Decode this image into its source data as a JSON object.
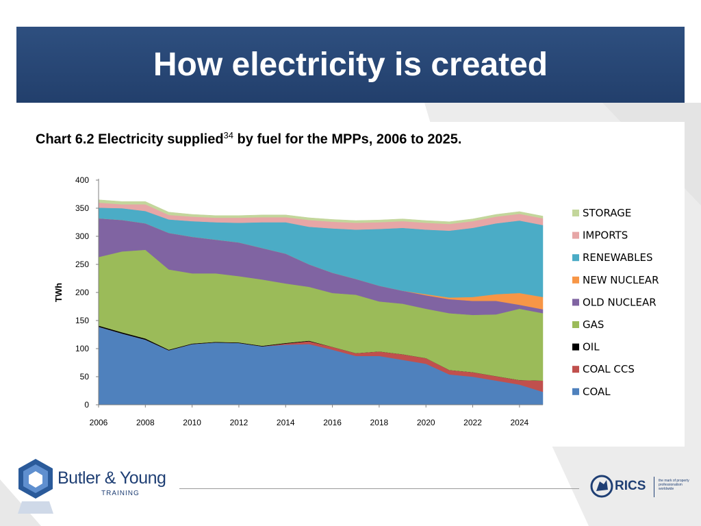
{
  "slide": {
    "title": "How electricity is created"
  },
  "chart_title": {
    "main": "Chart 6.2 Electricity supplied",
    "footnote": "34",
    "rest": " by fuel for the MPPs, 2006 to 2025."
  },
  "footer": {
    "brand": "Butler & Young",
    "brand_sub": "TRAINING",
    "partner": "RICS",
    "partner_tagline": "the mark of property professionalism worldwide"
  },
  "colors": {
    "title_bar": "#2a4876",
    "brand": "#1f3f74"
  },
  "chart_data": {
    "type": "area",
    "stacked": true,
    "title": "Chart 6.2 Electricity supplied by fuel for the MPPs, 2006 to 2025.",
    "xlabel": "",
    "ylabel": "TWh",
    "x": [
      2006,
      2007,
      2008,
      2009,
      2010,
      2011,
      2012,
      2013,
      2014,
      2015,
      2016,
      2017,
      2018,
      2019,
      2020,
      2021,
      2022,
      2023,
      2024,
      2025
    ],
    "xticks": [
      2006,
      2008,
      2010,
      2012,
      2014,
      2016,
      2018,
      2020,
      2022,
      2024
    ],
    "yticks": [
      0,
      50,
      100,
      150,
      200,
      250,
      300,
      350,
      400
    ],
    "ylim": [
      0,
      400
    ],
    "grid": false,
    "legend_position": "right",
    "series": [
      {
        "name": "COAL",
        "color": "#4f81bd",
        "values": [
          139,
          127,
          116,
          97,
          108,
          111,
          110,
          104,
          107,
          108,
          98,
          87,
          87,
          80,
          73,
          54,
          50,
          43,
          36,
          23
        ]
      },
      {
        "name": "COAL CCS",
        "color": "#c0504d",
        "values": [
          0,
          0,
          0,
          0,
          0,
          0,
          0,
          0,
          2,
          5,
          5,
          5,
          8,
          10,
          10,
          8,
          8,
          8,
          8,
          20
        ]
      },
      {
        "name": "OIL",
        "color": "#000000",
        "values": [
          2,
          2,
          2,
          1,
          1,
          1,
          1,
          1,
          1,
          1,
          0,
          0,
          0,
          0,
          0,
          0,
          0,
          0,
          0,
          0
        ]
      },
      {
        "name": "GAS",
        "color": "#9bbb59",
        "values": [
          122,
          144,
          158,
          143,
          125,
          122,
          118,
          118,
          106,
          96,
          96,
          104,
          89,
          90,
          88,
          101,
          102,
          110,
          127,
          120
        ]
      },
      {
        "name": "OLD NUCLEAR",
        "color": "#8064a2",
        "values": [
          69,
          56,
          47,
          65,
          65,
          60,
          60,
          56,
          53,
          40,
          36,
          28,
          28,
          23,
          24,
          25,
          25,
          24,
          7,
          7
        ]
      },
      {
        "name": "NEW NUCLEAR",
        "color": "#f79646",
        "values": [
          0,
          0,
          0,
          0,
          0,
          0,
          0,
          0,
          0,
          0,
          0,
          0,
          0,
          0,
          2,
          3,
          7,
          12,
          21,
          22
        ]
      },
      {
        "name": "RENEWABLES",
        "color": "#4bacc6",
        "values": [
          19,
          21,
          22,
          24,
          28,
          31,
          35,
          46,
          56,
          67,
          79,
          88,
          101,
          112,
          115,
          119,
          123,
          126,
          129,
          128
        ]
      },
      {
        "name": "IMPORTS",
        "color": "#e6a6a6",
        "values": [
          9,
          7,
          12,
          8,
          8,
          8,
          9,
          9,
          9,
          12,
          12,
          12,
          12,
          12,
          12,
          12,
          12,
          12,
          12,
          12
        ]
      },
      {
        "name": "STORAGE",
        "color": "#c3d69b",
        "values": [
          5,
          5,
          5,
          5,
          4,
          4,
          4,
          4,
          4,
          4,
          4,
          4,
          4,
          4,
          4,
          4,
          4,
          4,
          4,
          4
        ]
      }
    ]
  }
}
